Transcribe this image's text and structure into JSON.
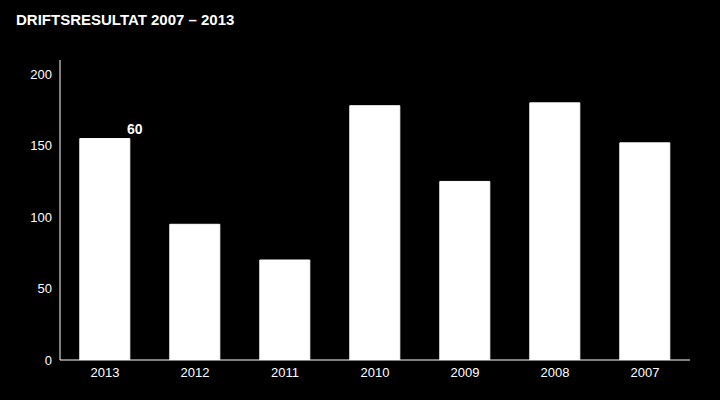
{
  "chart_data": {
    "type": "bar",
    "title": "DRIFTSRESULTAT 2007 – 2013",
    "categories": [
      "2013",
      "2012",
      "2011",
      "2010",
      "2009",
      "2008",
      "2007"
    ],
    "values": [
      155,
      95,
      70,
      178,
      125,
      180,
      152
    ],
    "color": "#ffffff",
    "ylim": [
      0,
      210
    ],
    "yticks": [
      0,
      50,
      100,
      150,
      200
    ],
    "grid": false,
    "annotations": [
      {
        "text": "60",
        "x": "2013",
        "y": 162
      }
    ]
  }
}
